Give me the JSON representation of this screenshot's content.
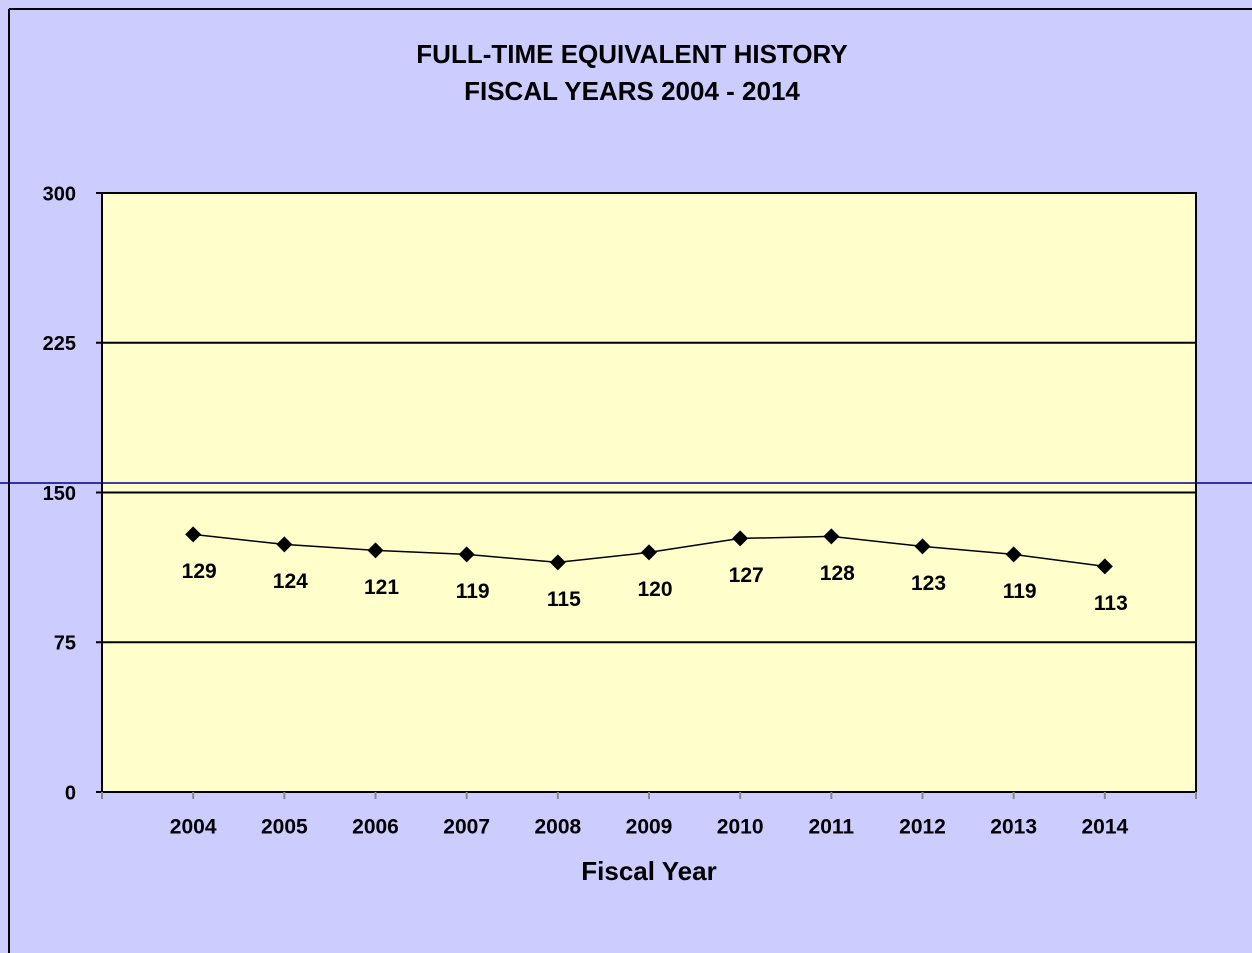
{
  "chart_data": {
    "type": "line",
    "title": "FULL-TIME EQUIVALENT HISTORY",
    "subtitle": "FISCAL YEARS 2004 - 2014",
    "x_label": "Fiscal Year",
    "categories": [
      "2004",
      "2005",
      "2006",
      "2007",
      "2008",
      "2009",
      "2010",
      "2011",
      "2012",
      "2013",
      "2014"
    ],
    "values": [
      129,
      124,
      121,
      119,
      115,
      120,
      127,
      128,
      123,
      119,
      113
    ],
    "color": "#000000",
    "ylim": [
      0,
      300
    ],
    "yticks": [
      0,
      75,
      150,
      225,
      300
    ],
    "grid": true
  }
}
